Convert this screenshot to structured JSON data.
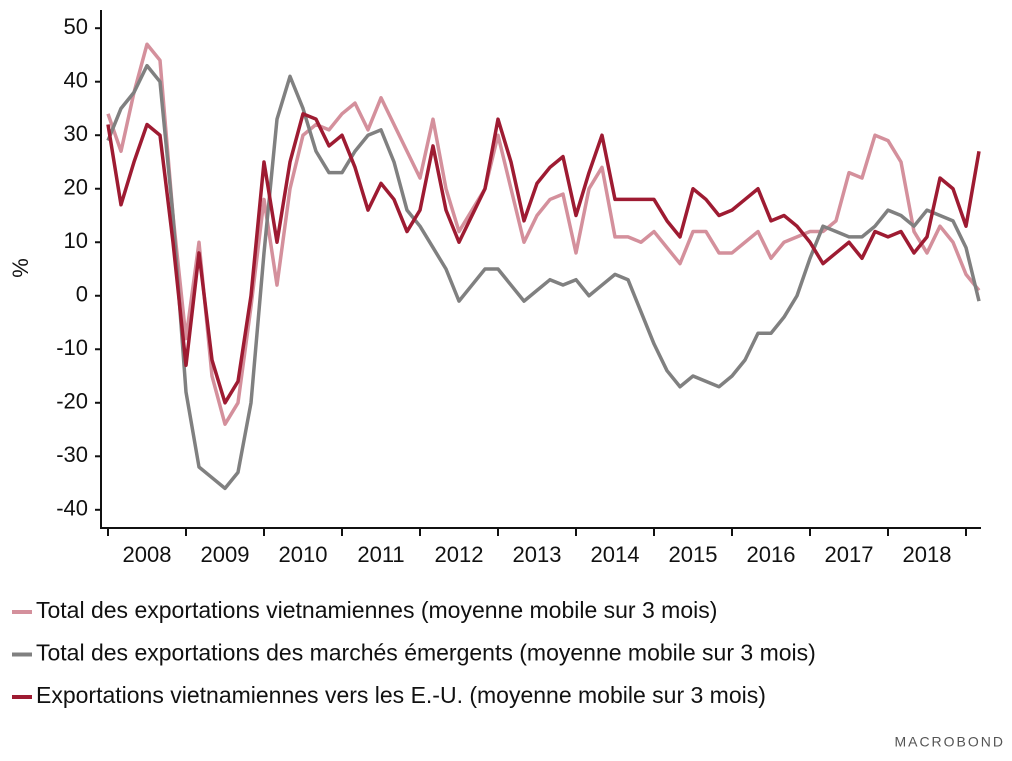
{
  "chart_data": {
    "type": "line",
    "ylabel": "%",
    "categories": [
      null,
      null,
      null,
      "2008",
      null,
      null,
      null,
      null,
      null,
      "2009",
      null,
      null,
      null,
      null,
      null,
      "2010",
      null,
      null,
      null,
      null,
      null,
      "2011",
      null,
      null,
      null,
      null,
      null,
      "2012",
      null,
      null,
      null,
      null,
      null,
      "2013",
      null,
      null,
      null,
      null,
      null,
      "2014",
      null,
      null,
      null,
      null,
      null,
      "2015",
      null,
      null,
      null,
      null,
      null,
      "2016",
      null,
      null,
      null,
      null,
      null,
      "2017",
      null,
      null,
      null,
      null,
      null,
      "2018",
      null,
      null,
      null,
      null
    ],
    "series": [
      {
        "name": "Total des exportations vietnamiennes (moyenne mobile sur 3 mois)",
        "color": "#d4909c",
        "values": [
          34,
          27,
          38,
          47,
          44,
          15,
          -8,
          10,
          -15,
          -24,
          -20,
          -2,
          18,
          2,
          20,
          30,
          32,
          31,
          34,
          36,
          31,
          37,
          32,
          27,
          22,
          33,
          20,
          12,
          16,
          20,
          30,
          20,
          10,
          15,
          18,
          19,
          8,
          20,
          24,
          11,
          11,
          10,
          12,
          9,
          6,
          12,
          12,
          8,
          8,
          10,
          12,
          7,
          10,
          11,
          12,
          12,
          14,
          23,
          22,
          30,
          29,
          25,
          12,
          8,
          13,
          10,
          4,
          1
        ]
      },
      {
        "name": "Total des exportations des marchés émergents (moyenne mobile sur 3 mois)",
        "color": "#808080",
        "values": [
          29,
          35,
          38,
          43,
          40,
          15,
          -18,
          -32,
          -34,
          -36,
          -33,
          -20,
          8,
          33,
          41,
          35,
          27,
          23,
          23,
          27,
          30,
          31,
          25,
          16,
          13,
          9,
          5,
          -1,
          2,
          5,
          5,
          2,
          -1,
          1,
          3,
          2,
          3,
          0,
          2,
          4,
          3,
          -3,
          -9,
          -14,
          -17,
          -15,
          -16,
          -17,
          -15,
          -12,
          -7,
          -7,
          -4,
          0,
          7,
          13,
          12,
          11,
          11,
          13,
          16,
          15,
          13,
          16,
          15,
          14,
          9,
          -1
        ]
      },
      {
        "name": "Exportations vietnamiennes vers les E.-U. (moyenne mobile sur 3 mois)",
        "color": "#9e1b32",
        "values": [
          32,
          17,
          25,
          32,
          30,
          10,
          -13,
          8,
          -12,
          -20,
          -16,
          0,
          25,
          10,
          25,
          34,
          33,
          28,
          30,
          24,
          16,
          21,
          18,
          12,
          16,
          28,
          16,
          10,
          15,
          20,
          33,
          25,
          14,
          21,
          24,
          26,
          15,
          23,
          30,
          18,
          18,
          18,
          18,
          14,
          11,
          20,
          18,
          15,
          16,
          18,
          20,
          14,
          15,
          13,
          10,
          6,
          8,
          10,
          7,
          12,
          11,
          12,
          8,
          11,
          22,
          20,
          13,
          27
        ]
      }
    ],
    "ylim": [
      -43.4,
      53.4
    ],
    "yticks": [
      -40,
      -30,
      -20,
      -10,
      0,
      10,
      20,
      30,
      40,
      50
    ],
    "logo": "MACROBOND"
  }
}
